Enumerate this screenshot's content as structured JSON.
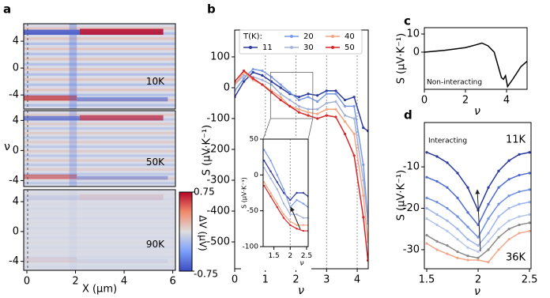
{
  "chart_data": [
    {
      "type": "heatmap",
      "panel_label": "a",
      "xlabel": "X (μm)",
      "ylabel": "ν",
      "xlim": [
        -0.13,
        6.11
      ],
      "xticks": [
        0,
        2,
        4,
        6
      ],
      "panels": [
        {
          "annotation": "10K",
          "ylim": [
            -6.1,
            6.6
          ],
          "yticks": [
            -4,
            0,
            4
          ]
        },
        {
          "annotation": "50K",
          "ylim": [
            -4.8,
            5.3
          ],
          "yticks": [
            -4,
            0,
            4
          ]
        },
        {
          "annotation": "90K",
          "ylim": [
            -5.2,
            5.6
          ],
          "yticks": [
            -4,
            0,
            4
          ]
        }
      ],
      "colorbar": {
        "label": "ΔV (μV)",
        "clim": [
          -0.75,
          0.75
        ],
        "ticks": [
          0.75,
          -0.75
        ]
      }
    },
    {
      "type": "line",
      "panel_label": "b",
      "xlabel": "ν",
      "ylabel": "S (μV·K⁻¹)",
      "xlim": [
        0,
        4.36
      ],
      "ylim": [
        -587,
        187
      ],
      "xticks": [
        0,
        1,
        2,
        3,
        4
      ],
      "yticks": [
        -500,
        -400,
        -300,
        -200,
        -100,
        0,
        100
      ],
      "vlines": [
        1,
        2,
        3,
        4
      ],
      "legend_title": "T(K):",
      "x": [
        0,
        0.3,
        0.6,
        0.9,
        1.2,
        1.5,
        1.8,
        2.1,
        2.4,
        2.7,
        3.0,
        3.3,
        3.6,
        3.9,
        4.2,
        4.35
      ],
      "series": [
        {
          "name": "11",
          "color": "#2b3a9e",
          "values": [
            -30,
            20,
            50,
            40,
            20,
            0,
            -20,
            -30,
            -20,
            -25,
            -10,
            -10,
            -40,
            -30,
            -130,
            -140
          ]
        },
        {
          "name": "20",
          "color": "#7a9ae6",
          "values": [
            -10,
            30,
            60,
            55,
            35,
            10,
            -15,
            -40,
            -30,
            -45,
            -20,
            -20,
            -60,
            -60,
            -250,
            -430
          ]
        },
        {
          "name": "30",
          "color": "#a3b3d8",
          "values": [
            10,
            40,
            35,
            25,
            10,
            -20,
            -40,
            -60,
            -70,
            -70,
            -50,
            -45,
            -90,
            -100,
            -300,
            -440
          ]
        },
        {
          "name": "40",
          "color": "#f4a582",
          "values": [
            10,
            50,
            25,
            10,
            -10,
            -30,
            -60,
            -70,
            -80,
            -85,
            -70,
            -70,
            -110,
            -150,
            -350,
            -500
          ]
        },
        {
          "name": "50",
          "color": "#d6282b",
          "values": [
            20,
            55,
            30,
            10,
            -15,
            -40,
            -60,
            -80,
            -90,
            -100,
            -90,
            -95,
            -150,
            -220,
            -420,
            -560
          ]
        }
      ]
    },
    {
      "type": "line",
      "xlabel": "ν",
      "ylabel": "S (μV·K⁻¹)",
      "xlim": [
        1.17,
        2.55
      ],
      "ylim": [
        -100,
        50
      ],
      "xticks": [
        1.5,
        2.0,
        2.5
      ],
      "yticks": [
        -100,
        -50,
        0,
        50
      ],
      "vlines": [
        2.0
      ],
      "x": [
        1.2,
        1.4,
        1.6,
        1.8,
        2.0,
        2.2,
        2.4,
        2.55
      ],
      "series": [
        {
          "color": "#2b3a9e",
          "values": [
            20,
            5,
            -10,
            -25,
            -35,
            -25,
            -25,
            -30
          ]
        },
        {
          "color": "#7a9ae6",
          "values": [
            35,
            20,
            0,
            -20,
            -45,
            -35,
            -40,
            -45
          ]
        },
        {
          "color": "#a3b3d8",
          "values": [
            10,
            -5,
            -20,
            -40,
            -55,
            -55,
            -60,
            -60
          ]
        },
        {
          "color": "#f4a582",
          "values": [
            -10,
            -25,
            -40,
            -55,
            -65,
            -70,
            -70,
            -70
          ]
        },
        {
          "color": "#d6282b",
          "values": [
            -15,
            -30,
            -45,
            -60,
            -70,
            -75,
            -78,
            -78
          ]
        }
      ]
    },
    {
      "type": "line",
      "panel_label": "c",
      "xlabel": "ν",
      "ylabel": "S (μV·K⁻¹)",
      "annotation": "Non-interacting",
      "xlim": [
        0,
        5
      ],
      "ylim": [
        -20.5,
        13.5
      ],
      "xticks": [
        0,
        2,
        4
      ],
      "yticks": [
        0,
        10
      ],
      "x": [
        0,
        1,
        2,
        2.5,
        2.8,
        3.1,
        3.4,
        3.6,
        3.75,
        3.85,
        3.95,
        4.05,
        4.3,
        4.7,
        5
      ],
      "series": [
        {
          "color": "#000000",
          "values": [
            0,
            1,
            2.5,
            4,
            5,
            3.5,
            0,
            -8,
            -14,
            -15,
            -13,
            -19,
            -15,
            -8,
            -5
          ]
        }
      ]
    },
    {
      "type": "line",
      "panel_label": "d",
      "xlabel": "ν",
      "ylabel": "S (μV·K⁻¹)",
      "annotation": "Interacting",
      "labels": [
        {
          "text": "11K",
          "color": "#2b3a9e"
        },
        {
          "text": "36K",
          "color": "#f0a88a"
        }
      ],
      "xlim": [
        1.477,
        2.515
      ],
      "ylim": [
        -34.6,
        0.7
      ],
      "xticks": [
        1.5,
        2,
        2.5
      ],
      "yticks": [
        -30,
        -20,
        -10
      ],
      "x": [
        1.5,
        1.6,
        1.7,
        1.8,
        1.9,
        2.0,
        2.1,
        2.2,
        2.3,
        2.4,
        2.5
      ],
      "series": [
        {
          "color": "#2b3a9e",
          "values": [
            -6.5,
            -7.5,
            -9,
            -11.5,
            -15,
            -20.5,
            -15,
            -11,
            -8.5,
            -7,
            -6.5
          ]
        },
        {
          "color": "#4d6bd0",
          "values": [
            -12.5,
            -13.5,
            -15,
            -17.5,
            -21,
            -24,
            -19,
            -15,
            -13,
            -12,
            -11.5
          ]
        },
        {
          "color": "#7090e0",
          "values": [
            -17.5,
            -18.5,
            -20,
            -22,
            -24.5,
            -27,
            -22.5,
            -19,
            -17,
            -16,
            -15.5
          ]
        },
        {
          "color": "#9db4ec",
          "values": [
            -20,
            -21.5,
            -23,
            -25,
            -27.5,
            -29,
            -26,
            -22,
            -20,
            -19,
            -18.5
          ]
        },
        {
          "color": "#b7c5e8",
          "values": [
            -22.5,
            -24,
            -25.5,
            -27.5,
            -29.5,
            -30.5,
            -28,
            -25,
            -23,
            -22,
            -21.5
          ]
        },
        {
          "color": "#8a8a8a",
          "values": [
            -26.5,
            -28,
            -29,
            -30.5,
            -31.5,
            -32,
            -30,
            -27,
            -25,
            -24,
            -23.5
          ]
        },
        {
          "color": "#f0a88a",
          "values": [
            -28.5,
            -30,
            -31,
            -32,
            -32.5,
            -32.5,
            -33,
            -30,
            -27.5,
            -26,
            -25.5
          ]
        }
      ]
    }
  ]
}
